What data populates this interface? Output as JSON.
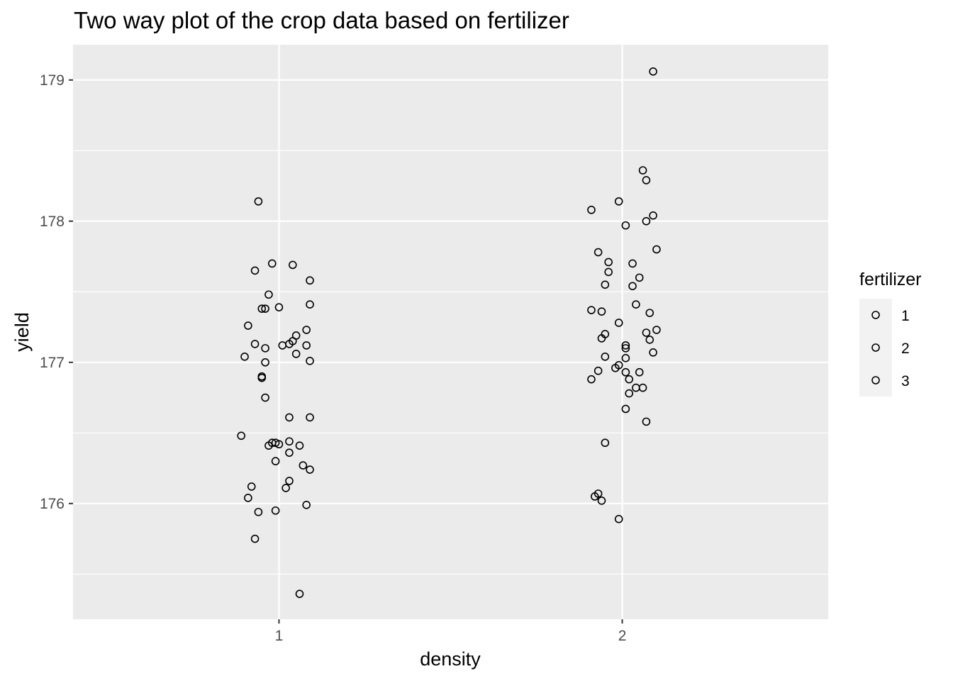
{
  "chart_data": {
    "type": "scatter",
    "title": "Two way plot of the crop data based on fertilizer",
    "xlabel": "density",
    "ylabel": "yield",
    "x_categories": [
      "1",
      "2"
    ],
    "xlim": [
      0.4,
      2.6
    ],
    "ylim": [
      175.18,
      179.25
    ],
    "y_ticks": [
      176,
      177,
      178,
      179
    ],
    "y_tick_labels": [
      "176",
      "177",
      "178",
      "179"
    ],
    "grid": true,
    "panel_background": "#ebebeb",
    "grid_color": "#ffffff",
    "point_color": "#000000",
    "point_style": "open-circle",
    "legend": {
      "title": "fertilizer",
      "placement": "right",
      "entries": [
        "1",
        "2",
        "3"
      ]
    },
    "series": [
      {
        "name": "density 1",
        "x": [
          0.94,
          0.98,
          1.04,
          0.93,
          1.09,
          0.97,
          1.09,
          0.95,
          0.96,
          1.0,
          0.91,
          1.08,
          1.05,
          1.04,
          1.03,
          0.93,
          1.08,
          1.01,
          0.96,
          1.05,
          0.9,
          1.09,
          0.96,
          0.95,
          0.95,
          0.96,
          1.03,
          1.09,
          0.89,
          0.98,
          1.03,
          0.99,
          0.97,
          1.0,
          1.06,
          1.03,
          0.99,
          1.07,
          1.09,
          1.03,
          0.92,
          1.02,
          0.91,
          1.08,
          0.99,
          0.94,
          0.93,
          1.06
        ],
        "y": [
          178.14,
          177.7,
          177.69,
          177.65,
          177.58,
          177.48,
          177.41,
          177.38,
          177.38,
          177.39,
          177.26,
          177.23,
          177.19,
          177.15,
          177.13,
          177.13,
          177.12,
          177.12,
          177.1,
          177.06,
          177.04,
          177.01,
          177.0,
          176.9,
          176.89,
          176.75,
          176.61,
          176.61,
          176.48,
          176.43,
          176.44,
          176.43,
          176.41,
          176.42,
          176.41,
          176.36,
          176.3,
          176.27,
          176.24,
          176.16,
          176.12,
          176.11,
          176.04,
          175.99,
          175.95,
          175.94,
          175.75,
          175.36
        ]
      },
      {
        "name": "density 2",
        "x": [
          2.09,
          2.06,
          2.07,
          1.91,
          1.99,
          2.09,
          2.07,
          2.01,
          2.1,
          1.93,
          1.96,
          2.03,
          1.96,
          2.05,
          1.95,
          2.03,
          2.04,
          1.91,
          1.94,
          2.08,
          1.99,
          2.1,
          2.07,
          1.95,
          1.94,
          2.08,
          2.01,
          2.01,
          2.09,
          1.95,
          2.01,
          1.99,
          1.98,
          1.93,
          2.01,
          2.05,
          2.02,
          1.91,
          2.06,
          2.04,
          2.02,
          2.01,
          2.07,
          1.95,
          1.93,
          1.92,
          1.94,
          1.99
        ],
        "y": [
          179.06,
          178.36,
          178.29,
          178.08,
          178.14,
          178.04,
          178.0,
          177.97,
          177.8,
          177.78,
          177.71,
          177.7,
          177.64,
          177.6,
          177.55,
          177.54,
          177.41,
          177.37,
          177.36,
          177.35,
          177.28,
          177.23,
          177.21,
          177.2,
          177.17,
          177.16,
          177.12,
          177.1,
          177.07,
          177.04,
          177.03,
          176.98,
          176.96,
          176.94,
          176.93,
          176.93,
          176.88,
          176.88,
          176.82,
          176.82,
          176.78,
          176.67,
          176.58,
          176.43,
          176.07,
          176.05,
          176.02,
          175.89
        ]
      }
    ]
  }
}
